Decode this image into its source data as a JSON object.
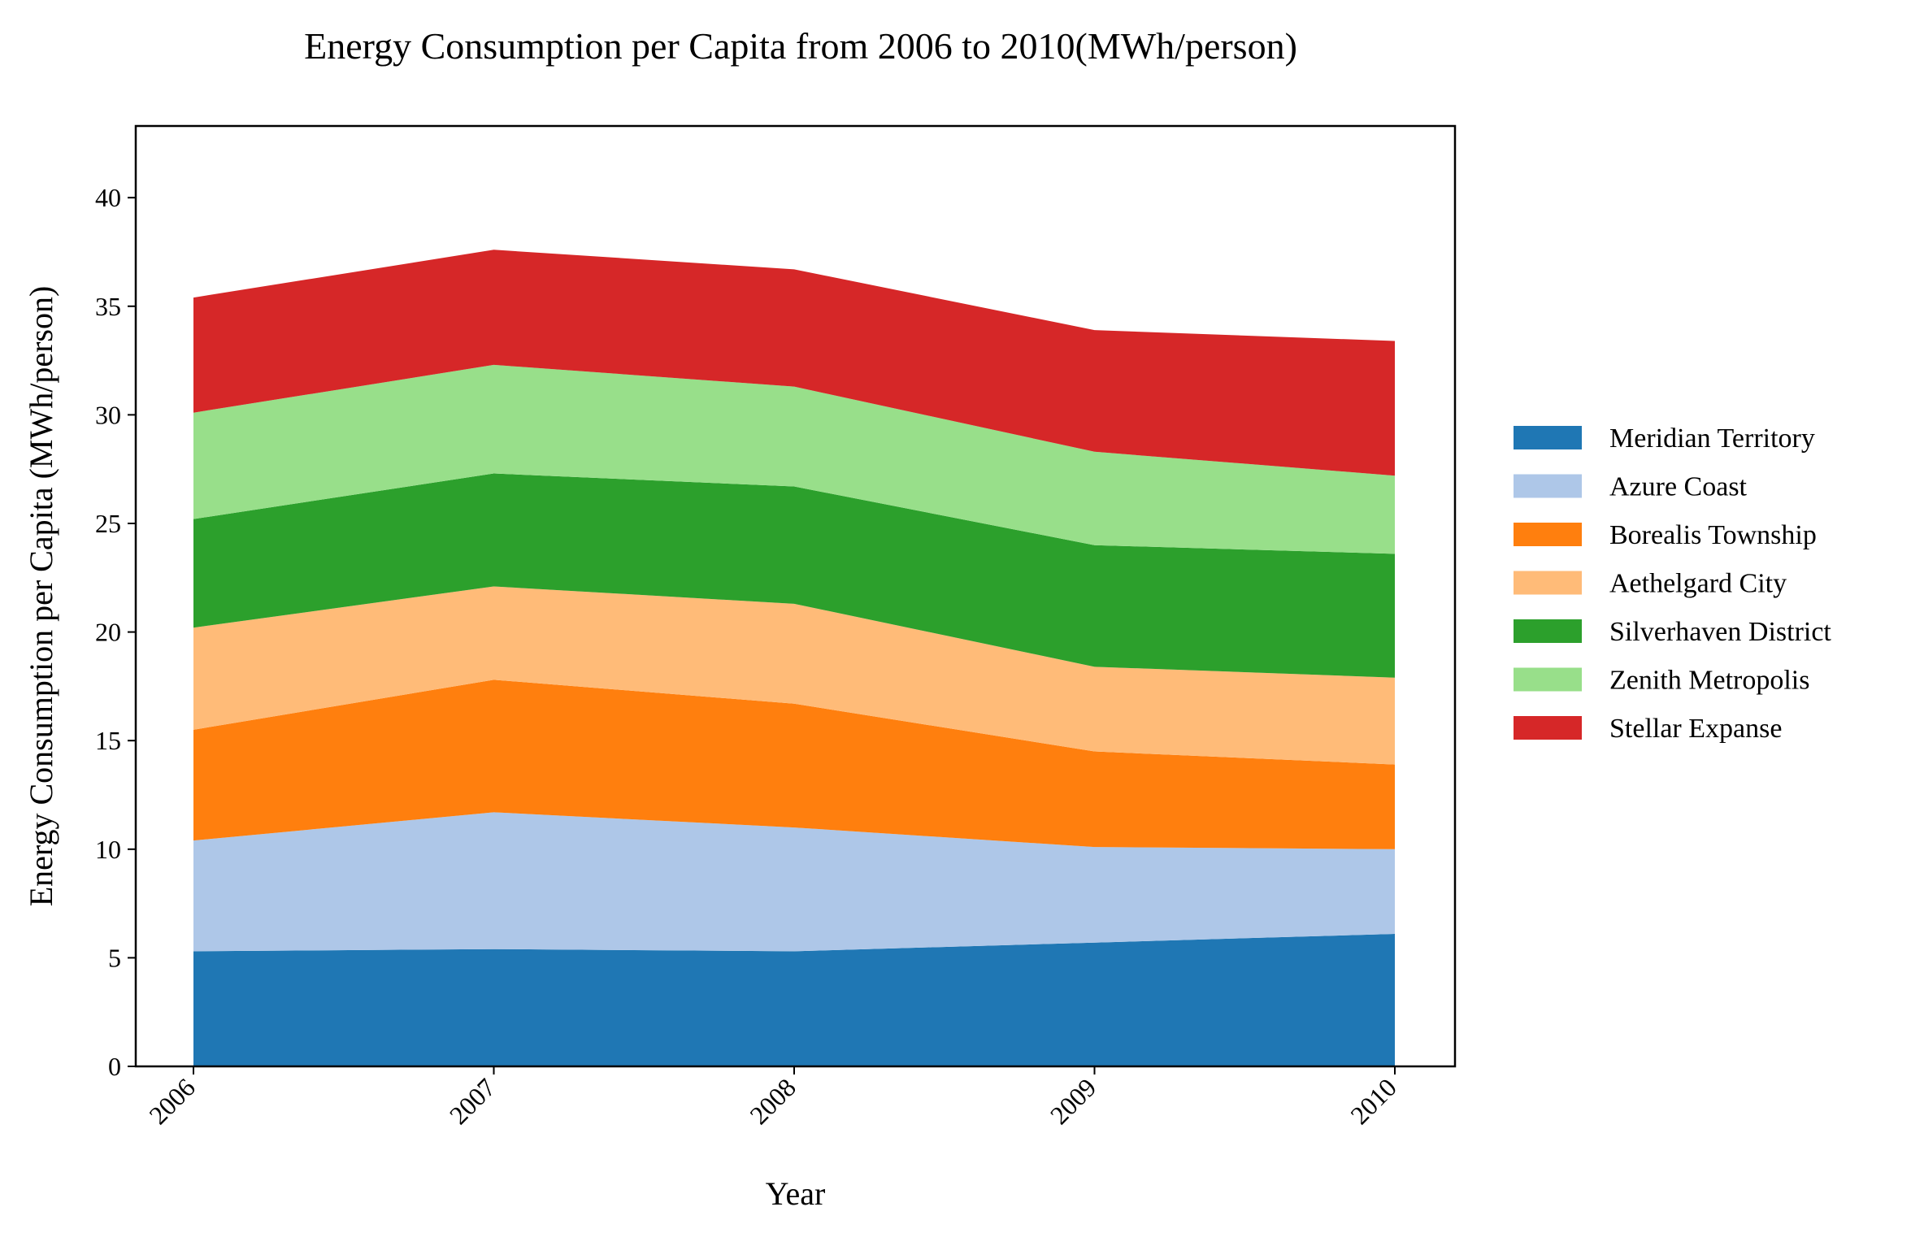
{
  "chart_data": {
    "type": "area",
    "stacked": true,
    "title": "Energy Consumption per Capita from 2006 to 2010(MWh/person)",
    "xlabel": "Year",
    "ylabel": "Energy Consumption per Capita (MWh/person)",
    "categories": [
      "2006",
      "2007",
      "2008",
      "2009",
      "2010"
    ],
    "ylim": [
      0,
      43.3
    ],
    "yticks": [
      0,
      5,
      10,
      15,
      20,
      25,
      30,
      35,
      40
    ],
    "grid": false,
    "legend_position": "right",
    "series": [
      {
        "name": "Meridian Territory",
        "color": "#1f77b4",
        "values": [
          5.3,
          5.4,
          5.3,
          5.7,
          6.1
        ]
      },
      {
        "name": "Azure Coast",
        "color": "#aec7e8",
        "values": [
          5.1,
          6.3,
          5.7,
          4.4,
          3.9
        ]
      },
      {
        "name": "Borealis Township",
        "color": "#ff7f0e",
        "values": [
          5.1,
          6.1,
          5.7,
          4.4,
          3.9
        ]
      },
      {
        "name": "Aethelgard City",
        "color": "#ffbb78",
        "values": [
          4.7,
          4.3,
          4.6,
          3.9,
          4.0
        ]
      },
      {
        "name": "Silverhaven District",
        "color": "#2ca02c",
        "values": [
          5.0,
          5.2,
          5.4,
          5.6,
          5.7
        ]
      },
      {
        "name": "Zenith Metropolis",
        "color": "#98df8a",
        "values": [
          4.9,
          5.0,
          4.6,
          4.3,
          3.6
        ]
      },
      {
        "name": "Stellar Expanse",
        "color": "#d62728",
        "values": [
          5.3,
          5.3,
          5.4,
          5.6,
          6.2
        ]
      }
    ]
  }
}
